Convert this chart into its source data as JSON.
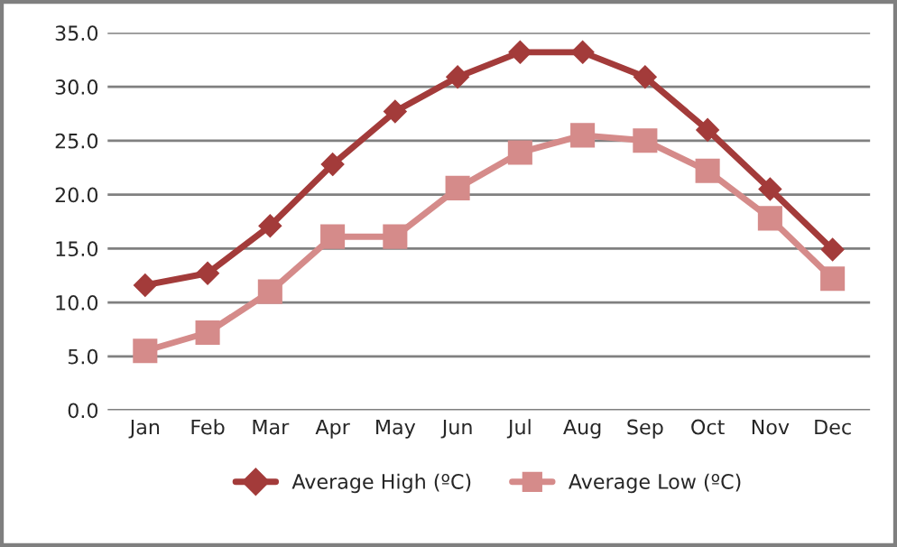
{
  "chart_data": {
    "type": "line",
    "categories": [
      "Jan",
      "Feb",
      "Mar",
      "Apr",
      "May",
      "Jun",
      "Jul",
      "Aug",
      "Sep",
      "Oct",
      "Nov",
      "Dec"
    ],
    "series": [
      {
        "name": "Average High (ºC)",
        "color": "#a33b3a",
        "marker": "diamond",
        "values": [
          11.6,
          12.7,
          17.1,
          22.8,
          27.7,
          30.9,
          33.2,
          33.2,
          30.9,
          26.0,
          20.5,
          14.9
        ]
      },
      {
        "name": "Average Low (ºC)",
        "color": "#d58b8a",
        "marker": "square",
        "values": [
          5.5,
          7.2,
          11.0,
          16.1,
          16.1,
          20.6,
          23.9,
          25.5,
          25.0,
          22.2,
          17.8,
          12.2
        ]
      }
    ],
    "ylim": [
      0,
      35
    ],
    "yticks": [
      {
        "value": 0,
        "label": "0.0"
      },
      {
        "value": 5,
        "label": "5.0"
      },
      {
        "value": 10,
        "label": "10.0"
      },
      {
        "value": 15,
        "label": "15.0"
      },
      {
        "value": 20,
        "label": "20.0"
      },
      {
        "value": 25,
        "label": "25.0"
      },
      {
        "value": 30,
        "label": "30.0"
      },
      {
        "value": 35,
        "label": "35.0"
      }
    ],
    "grid": "y",
    "legend": "bottom",
    "line_style": "solid"
  }
}
